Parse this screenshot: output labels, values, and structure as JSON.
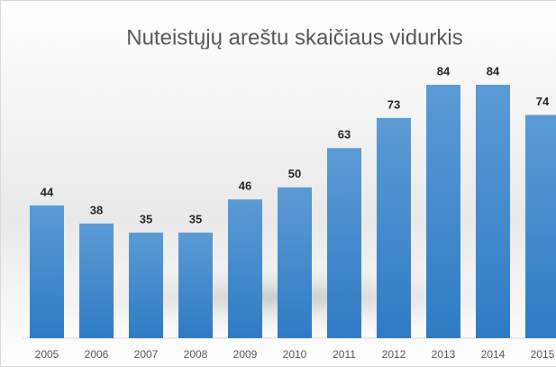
{
  "chart_data": {
    "type": "bar",
    "title": "Nuteistųjų areštu skaičiaus vidurkis",
    "categories": [
      "2005",
      "2006",
      "2007",
      "2008",
      "2009",
      "2010",
      "2011",
      "2012",
      "2013",
      "2014",
      "2015"
    ],
    "values": [
      44,
      38,
      35,
      35,
      46,
      50,
      63,
      73,
      84,
      84,
      74
    ],
    "color": "#5b9bd5",
    "ylim": [
      0,
      100
    ]
  }
}
